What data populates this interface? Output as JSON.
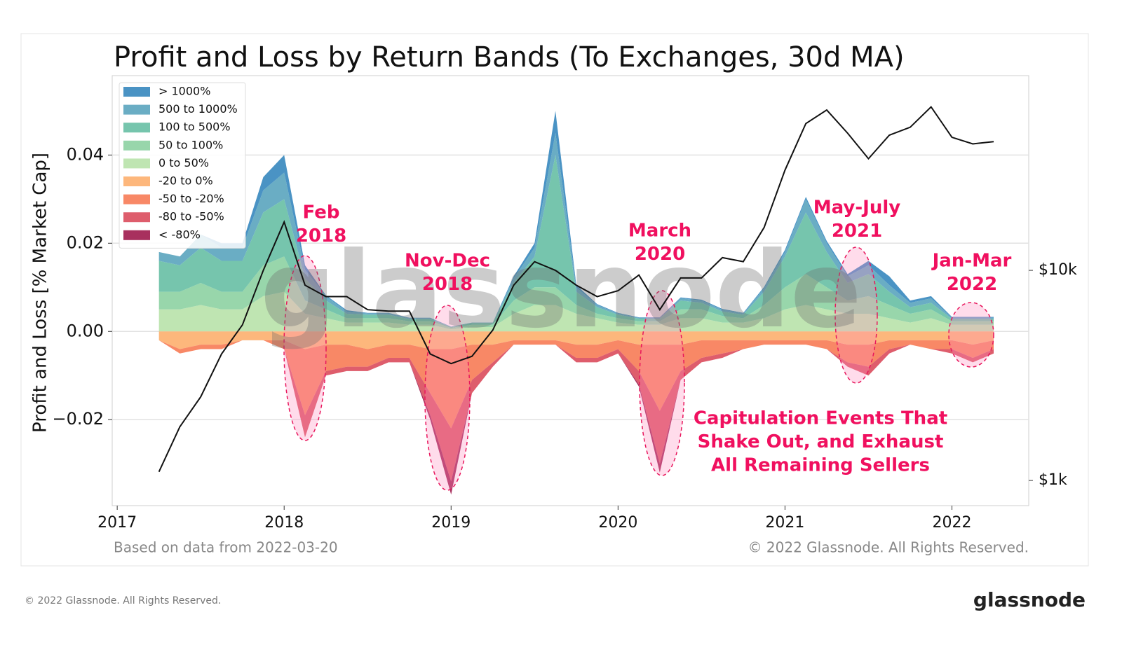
{
  "chart_data": {
    "type": "area",
    "title": "Profit and Loss by Return Bands (To Exchanges, 30d MA)",
    "y_label": "Profit and Loss [% Market Cap]",
    "x": [
      2017.25,
      2017.375,
      2017.5,
      2017.625,
      2017.75,
      2017.875,
      2018.0,
      2018.125,
      2018.25,
      2018.375,
      2018.5,
      2018.625,
      2018.75,
      2018.875,
      2019.0,
      2019.125,
      2019.25,
      2019.375,
      2019.5,
      2019.625,
      2019.75,
      2019.875,
      2020.0,
      2020.125,
      2020.25,
      2020.375,
      2020.5,
      2020.625,
      2020.75,
      2020.875,
      2021.0,
      2021.125,
      2021.25,
      2021.375,
      2021.5,
      2021.625,
      2021.75,
      2021.875,
      2022.0,
      2022.125,
      2022.25
    ],
    "xlim": [
      2016.97,
      2022.46
    ],
    "xticks": [
      2017,
      2018,
      2019,
      2020,
      2021,
      2022
    ],
    "ylim": [
      -0.0395,
      0.058
    ],
    "yticks": [
      {
        "value": -0.02,
        "label": "−0.02"
      },
      {
        "value": 0,
        "label": "0.00"
      },
      0.02,
      0.04
    ],
    "y2lim": [
      759,
      84500
    ],
    "y2scale": "log",
    "y2ticks": [
      {
        "value": 1000,
        "label": "$1k"
      },
      {
        "value": 10000,
        "label": "$10k"
      }
    ],
    "grid": true,
    "legend": "upper left",
    "series": [
      {
        "name": "> 1000%",
        "color": "#4a93c4",
        "values": [
          0,
          0,
          0,
          0.001,
          0.001,
          0.003,
          0.004,
          0.001,
          0.0002,
          0.0003,
          0.0001,
          0.0001,
          0.0001,
          0.0001,
          0,
          0,
          0,
          0.0005,
          0.001,
          0.005,
          0.0005,
          0.0002,
          0.0001,
          0.0001,
          0.0001,
          0.0002,
          0.0002,
          0.0002,
          0.0001,
          0.0003,
          0.0005,
          0.0005,
          0.0005,
          0.0005,
          0.001,
          0.002,
          0.0005,
          0.0005,
          0.0002,
          0.0002,
          0.0002
        ]
      },
      {
        "name": "500 to 1000%",
        "color": "#6aadc4",
        "values": [
          0.002,
          0.002,
          0.003,
          0.003,
          0.003,
          0.005,
          0.006,
          0.002,
          0.001,
          0.0005,
          0.0003,
          0.0003,
          0.0002,
          0.0002,
          0.0001,
          0.0001,
          0.0001,
          0.001,
          0.002,
          0.005,
          0.001,
          0.0005,
          0.0003,
          0.0002,
          0.0002,
          0.0005,
          0.0005,
          0.0004,
          0.0003,
          0.0008,
          0.001,
          0.003,
          0.002,
          0.0015,
          0.002,
          0.0015,
          0.001,
          0.001,
          0.0003,
          0.0003,
          0.0003
        ]
      },
      {
        "name": "100 to 500%",
        "color": "#76c5ad",
        "values": [
          0.007,
          0.006,
          0.008,
          0.007,
          0.007,
          0.012,
          0.013,
          0.005,
          0.002,
          0.001,
          0.0008,
          0.0008,
          0.0005,
          0.0005,
          0.0002,
          0.0004,
          0.0004,
          0.004,
          0.007,
          0.03,
          0.003,
          0.0015,
          0.0008,
          0.0006,
          0.0006,
          0.002,
          0.0015,
          0.001,
          0.0008,
          0.003,
          0.007,
          0.014,
          0.008,
          0.004,
          0.005,
          0.003,
          0.0015,
          0.0015,
          0.0005,
          0.0005,
          0.0005
        ]
      },
      {
        "name": "50 to 100%",
        "color": "#98d6ab",
        "values": [
          0.004,
          0.004,
          0.005,
          0.004,
          0.004,
          0.007,
          0.008,
          0.003,
          0.002,
          0.001,
          0.001,
          0.001,
          0.0008,
          0.0008,
          0.0003,
          0.0005,
          0.0005,
          0.003,
          0.004,
          0.004,
          0.002,
          0.001,
          0.001,
          0.0008,
          0.0008,
          0.002,
          0.002,
          0.0015,
          0.001,
          0.003,
          0.005,
          0.007,
          0.005,
          0.003,
          0.004,
          0.003,
          0.002,
          0.002,
          0.0008,
          0.0008,
          0.0008
        ]
      },
      {
        "name": "0 to 50%",
        "color": "#bfe5b2",
        "values": [
          0.005,
          0.005,
          0.006,
          0.005,
          0.005,
          0.008,
          0.009,
          0.004,
          0.003,
          0.002,
          0.002,
          0.002,
          0.0015,
          0.0015,
          0.0005,
          0.001,
          0.001,
          0.004,
          0.006,
          0.006,
          0.004,
          0.003,
          0.002,
          0.0015,
          0.0015,
          0.003,
          0.003,
          0.002,
          0.002,
          0.003,
          0.005,
          0.006,
          0.005,
          0.004,
          0.004,
          0.003,
          0.002,
          0.003,
          0.0015,
          0.0015,
          0.0015
        ]
      },
      {
        "name": "-20 to 0%",
        "color": "#fdb77c",
        "values": [
          -0.002,
          -0.004,
          -0.003,
          -0.003,
          -0.002,
          -0.002,
          -0.002,
          -0.004,
          -0.003,
          -0.003,
          -0.004,
          -0.003,
          -0.003,
          -0.004,
          -0.004,
          -0.003,
          -0.003,
          -0.002,
          -0.002,
          -0.002,
          -0.003,
          -0.003,
          -0.002,
          -0.003,
          -0.003,
          -0.003,
          -0.002,
          -0.002,
          -0.002,
          -0.002,
          -0.002,
          -0.002,
          -0.002,
          -0.003,
          -0.003,
          -0.002,
          -0.002,
          -0.002,
          -0.002,
          -0.003,
          -0.002
        ]
      },
      {
        "name": "-50 to -20%",
        "color": "#f88866",
        "values": [
          0,
          -0.001,
          -0.001,
          -0.001,
          0,
          0,
          -0.002,
          -0.015,
          -0.006,
          -0.005,
          -0.004,
          -0.003,
          -0.003,
          -0.01,
          -0.018,
          -0.008,
          -0.004,
          -0.001,
          -0.001,
          -0.001,
          -0.003,
          -0.003,
          -0.002,
          -0.006,
          -0.015,
          -0.006,
          -0.004,
          -0.003,
          -0.002,
          -0.001,
          -0.001,
          -0.001,
          -0.002,
          -0.004,
          -0.005,
          -0.002,
          -0.001,
          -0.002,
          -0.002,
          -0.003,
          -0.002
        ]
      },
      {
        "name": "-80 to -50%",
        "color": "#de5d6c",
        "values": [
          0,
          0,
          0,
          0,
          0,
          0,
          0,
          -0.005,
          -0.001,
          -0.001,
          -0.001,
          -0.001,
          -0.001,
          -0.005,
          -0.012,
          -0.003,
          -0.001,
          0,
          0,
          0,
          -0.001,
          -0.001,
          -0.001,
          -0.003,
          -0.012,
          -0.002,
          -0.001,
          -0.001,
          0,
          0,
          0,
          0,
          0,
          -0.001,
          -0.002,
          -0.001,
          0,
          0,
          -0.001,
          -0.001,
          -0.001
        ]
      },
      {
        "name": "< -80%",
        "color": "#a8305e",
        "values": [
          0,
          0,
          0,
          0,
          0,
          0,
          0,
          0,
          0,
          0,
          0,
          0,
          0,
          -0.001,
          -0.003,
          0,
          0,
          0,
          0,
          0,
          0,
          0,
          0,
          -0.0005,
          -0.002,
          0,
          0,
          0,
          0,
          0,
          0,
          0,
          0,
          0,
          0,
          0,
          0,
          0,
          0,
          0,
          0
        ]
      }
    ],
    "price_line": {
      "axis": "y2",
      "color": "#111111",
      "values": [
        1100,
        1800,
        2500,
        4000,
        5500,
        10000,
        17000,
        8500,
        7500,
        7500,
        6500,
        6400,
        6400,
        4000,
        3600,
        3900,
        5200,
        8500,
        11000,
        10000,
        8500,
        7500,
        8000,
        9500,
        6500,
        9200,
        9200,
        11500,
        11000,
        16000,
        30000,
        50000,
        58000,
        45000,
        34000,
        44000,
        48000,
        60000,
        43000,
        40000,
        41000
      ]
    },
    "annotations": [
      [
        "Feb",
        "2018"
      ],
      [
        "Nov-Dec",
        "2018"
      ],
      [
        "March",
        "2020"
      ],
      [
        "May-July",
        "2021"
      ],
      [
        "Jan-Mar",
        "2022"
      ],
      [
        "Capitulation Events That",
        "Shake Out, and Exhaust",
        "All Remaining Sellers"
      ]
    ],
    "watermark": "glassnode",
    "source_note": "Based on data from 2022-03-20",
    "copyright": "© 2022 Glassnode. All Rights Reserved."
  },
  "footer": {
    "copyright": "© 2022 Glassnode. All Rights Reserved.",
    "logo": "glassnode"
  }
}
